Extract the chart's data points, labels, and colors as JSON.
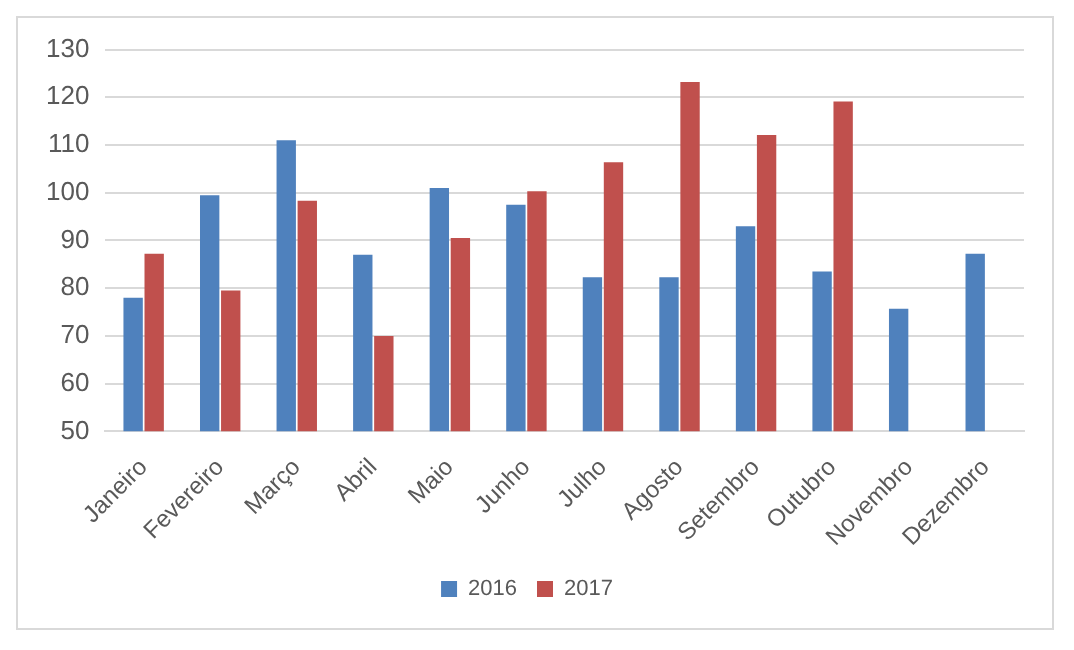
{
  "chart_data": {
    "type": "bar",
    "categories": [
      "Janeiro",
      "Fevereiro",
      "Março",
      "Abril",
      "Maio",
      "Junho",
      "Julho",
      "Agosto",
      "Setembro",
      "Outubro",
      "Novembro",
      "Dezembro"
    ],
    "series": [
      {
        "name": "2016",
        "color": "#4f81bd",
        "values": [
          78,
          99.5,
          111,
          87,
          101,
          97.5,
          82.3,
          82.3,
          93,
          83.5,
          75.7,
          87.2
        ]
      },
      {
        "name": "2017",
        "color": "#c0504d",
        "values": [
          87.2,
          79.5,
          98.3,
          70,
          90.5,
          100.3,
          106.4,
          123.2,
          112.1,
          119.1,
          null,
          null
        ]
      }
    ],
    "ylim": [
      50,
      130
    ],
    "yticks": [
      50,
      60,
      70,
      80,
      90,
      100,
      110,
      120,
      130
    ],
    "grid": "y",
    "legend": "bottom"
  }
}
